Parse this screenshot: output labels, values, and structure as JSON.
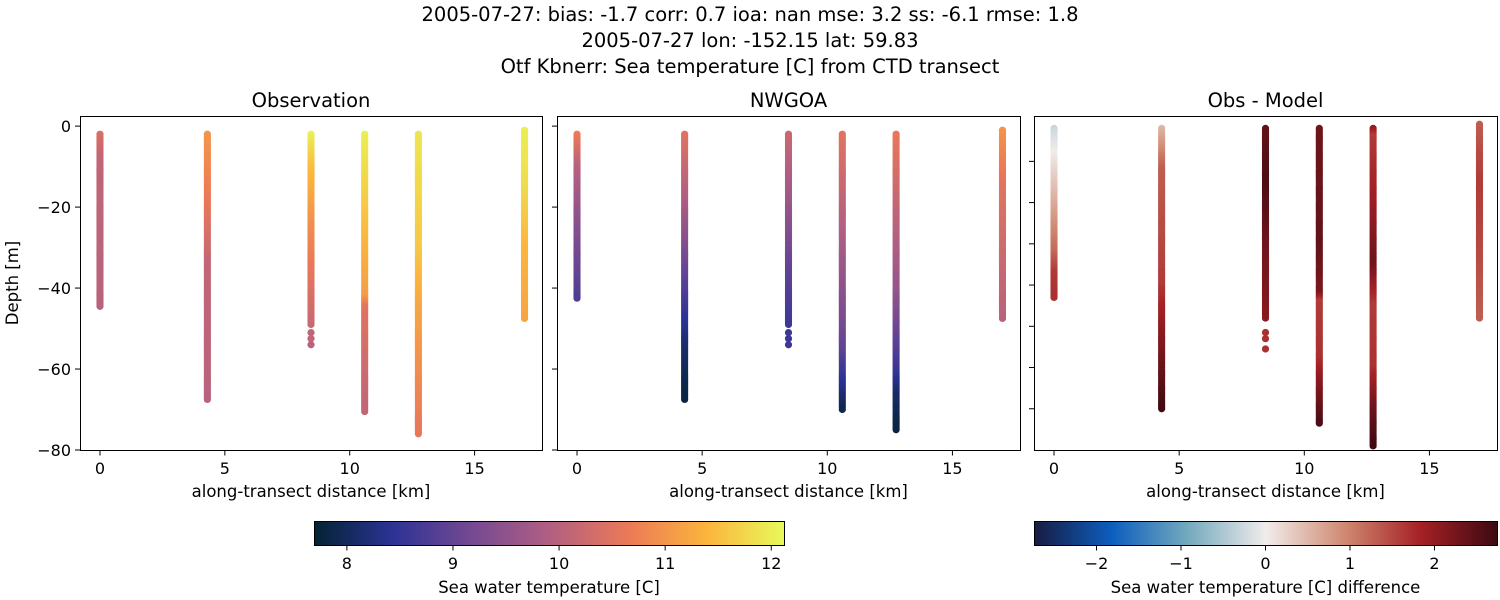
{
  "suptitle": {
    "line1": "2005-07-27: bias: -1.7  corr: 0.7  ioa: nan  mse: 3.2  ss: -6.1  rmse: 1.8",
    "line2": "2005-07-27 lon: -152.15 lat: 59.83",
    "line3": "Otf Kbnerr: Sea temperature [C] from CTD transect"
  },
  "chart_data": [
    {
      "type": "scatter",
      "title": "Observation",
      "xlabel": "along-transect distance [km]",
      "ylabel": "Depth [m]",
      "xlim": [
        -0.8,
        17.7
      ],
      "ylim": [
        -80,
        2.5
      ],
      "xticks": [
        0,
        5,
        10,
        15
      ],
      "yticks": [
        0,
        -20,
        -40,
        -60,
        -80
      ],
      "ytick_labels_shown": true,
      "colormap": "thermal",
      "clim": [
        7.69,
        12.12
      ],
      "profiles": [
        {
          "x": 0,
          "top": -2,
          "bottom": -44.5,
          "values": [
            [
              -2,
              10.4
            ],
            [
              -8,
              10.1
            ],
            [
              -44.5,
              10.0
            ]
          ]
        },
        {
          "x": 4.3,
          "top": -2,
          "bottom": -67.5,
          "values": [
            [
              -2,
              11.0
            ],
            [
              -20,
              10.6
            ],
            [
              -35,
              10.1
            ],
            [
              -67.5,
              10.0
            ]
          ]
        },
        {
          "x": 8.45,
          "top": -2,
          "bottom": -49,
          "values": [
            [
              -2,
              12.0
            ],
            [
              -10,
              11.5
            ],
            [
              -25,
              10.9
            ],
            [
              -49,
              10.2
            ]
          ],
          "extra": [
            [
              -51,
              10.1
            ],
            [
              -52.5,
              10.1
            ],
            [
              -54,
              10.0
            ]
          ]
        },
        {
          "x": 10.6,
          "top": -2,
          "bottom": -70.5,
          "values": [
            [
              -2,
              12.0
            ],
            [
              -20,
              11.6
            ],
            [
              -42,
              11.1
            ],
            [
              -45,
              10.5
            ],
            [
              -70.5,
              10.1
            ]
          ]
        },
        {
          "x": 12.75,
          "top": -2,
          "bottom": -76,
          "values": [
            [
              -2,
              11.9
            ],
            [
              -30,
              11.6
            ],
            [
              -45,
              11.2
            ],
            [
              -76,
              10.6
            ]
          ]
        },
        {
          "x": 17,
          "top": -1,
          "bottom": -47.5,
          "values": [
            [
              -1,
              12.0
            ],
            [
              -15,
              11.8
            ],
            [
              -30,
              11.4
            ],
            [
              -47.5,
              11.2
            ]
          ]
        }
      ]
    },
    {
      "type": "scatter",
      "title": "NWGOA",
      "xlabel": "along-transect distance [km]",
      "xlim": [
        -0.8,
        17.7
      ],
      "ylim": [
        -80,
        2.5
      ],
      "xticks": [
        0,
        5,
        10,
        15
      ],
      "yticks": [
        0,
        -20,
        -40,
        -60,
        -80
      ],
      "ytick_labels_shown": false,
      "colormap": "thermal",
      "clim": [
        7.69,
        12.12
      ],
      "profiles": [
        {
          "x": 0,
          "top": -2,
          "bottom": -42.5,
          "values": [
            [
              -2,
              10.7
            ],
            [
              -10,
              10.0
            ],
            [
              -25,
              9.4
            ],
            [
              -42.5,
              8.8
            ]
          ]
        },
        {
          "x": 4.3,
          "top": -2,
          "bottom": -67.5,
          "values": [
            [
              -2,
              10.5
            ],
            [
              -20,
              9.8
            ],
            [
              -45,
              8.6
            ],
            [
              -55,
              8.1
            ],
            [
              -67.5,
              7.8
            ]
          ]
        },
        {
          "x": 8.45,
          "top": -2,
          "bottom": -49,
          "values": [
            [
              -2,
              10.2
            ],
            [
              -20,
              9.6
            ],
            [
              -35,
              9.0
            ],
            [
              -49,
              8.6
            ]
          ],
          "extra": [
            [
              -51,
              8.6
            ],
            [
              -52.5,
              8.6
            ],
            [
              -54,
              8.6
            ]
          ]
        },
        {
          "x": 10.6,
          "top": -2,
          "bottom": -70,
          "values": [
            [
              -2,
              10.5
            ],
            [
              -30,
              9.8
            ],
            [
              -55,
              9.0
            ],
            [
              -62,
              8.5
            ],
            [
              -70,
              7.9
            ]
          ]
        },
        {
          "x": 12.75,
          "top": -2,
          "bottom": -75,
          "values": [
            [
              -2,
              10.6
            ],
            [
              -40,
              9.6
            ],
            [
              -60,
              8.6
            ],
            [
              -66,
              8.1
            ],
            [
              -75,
              7.8
            ]
          ]
        },
        {
          "x": 17,
          "top": -1,
          "bottom": -47.5,
          "values": [
            [
              -1,
              11.0
            ],
            [
              -15,
              10.5
            ],
            [
              -47.5,
              10.0
            ]
          ]
        }
      ]
    },
    {
      "type": "scatter",
      "title": "Obs - Model",
      "xlabel": "along-transect distance [km]",
      "xlim": [
        -0.8,
        17.7
      ],
      "ylim": [
        -80,
        1
      ],
      "xticks": [
        0,
        5,
        10,
        15
      ],
      "yticks": [
        -10,
        -20,
        -30,
        -40,
        -50,
        -60,
        -70
      ],
      "ytick_labels_shown": false,
      "colormap": "balance",
      "clim": [
        -2.74,
        2.74
      ],
      "profiles": [
        {
          "x": 0,
          "top": -2,
          "bottom": -43,
          "values": [
            [
              -2,
              -0.3
            ],
            [
              -8,
              0.0
            ],
            [
              -20,
              0.6
            ],
            [
              -32,
              1.2
            ],
            [
              -37,
              1.6
            ],
            [
              -43,
              1.7
            ]
          ]
        },
        {
          "x": 4.3,
          "top": -2,
          "bottom": -70,
          "values": [
            [
              -2,
              0.5
            ],
            [
              -12,
              1.3
            ],
            [
              -40,
              1.6
            ],
            [
              -50,
              2.0
            ],
            [
              -62,
              2.4
            ],
            [
              -70,
              2.7
            ]
          ]
        },
        {
          "x": 8.45,
          "top": -2,
          "bottom": -48,
          "values": [
            [
              -2,
              2.4
            ],
            [
              -15,
              2.6
            ],
            [
              -30,
              2.3
            ],
            [
              -48,
              2.1
            ]
          ],
          "extra": [
            [
              -51.5,
              1.7
            ],
            [
              -53,
              1.7
            ],
            [
              -55.5,
              1.7
            ]
          ]
        },
        {
          "x": 10.6,
          "top": -2,
          "bottom": -73.5,
          "values": [
            [
              -2,
              2.3
            ],
            [
              -30,
              2.4
            ],
            [
              -42,
              2.2
            ],
            [
              -44,
              1.6
            ],
            [
              -58,
              1.7
            ],
            [
              -64,
              2.1
            ],
            [
              -73.5,
              2.6
            ]
          ]
        },
        {
          "x": 12.75,
          "top": -2,
          "bottom": -79,
          "values": [
            [
              -2,
              2.0
            ],
            [
              -4,
              1.6
            ],
            [
              -20,
              1.9
            ],
            [
              -35,
              2.3
            ],
            [
              -45,
              1.6
            ],
            [
              -60,
              1.7
            ],
            [
              -70,
              2.3
            ],
            [
              -79,
              2.7
            ]
          ]
        },
        {
          "x": 17,
          "top": -1,
          "bottom": -48,
          "values": [
            [
              -1,
              1.3
            ],
            [
              -15,
              1.6
            ],
            [
              -30,
              1.5
            ],
            [
              -48,
              1.3
            ]
          ]
        }
      ]
    }
  ],
  "colorbars": [
    {
      "label": "Sea water temperature [C]",
      "range": [
        7.69,
        12.12
      ],
      "ticks": [
        8,
        9,
        10,
        11,
        12
      ],
      "colormap": "thermal",
      "colors": [
        "#042333",
        "#2c3395",
        "#744992",
        "#b15f82",
        "#eb7958",
        "#fbb43d",
        "#e8fa5b"
      ]
    },
    {
      "label": "Sea water temperature [C] difference",
      "range": [
        -2.74,
        2.74
      ],
      "ticks": [
        "−2",
        "−1",
        "0",
        "1",
        "2"
      ],
      "tick_values": [
        -2,
        -1,
        0,
        1,
        2
      ],
      "colormap": "balance",
      "colors": [
        "#181c43",
        "#0c5ebe",
        "#75aabe",
        "#f1eceb",
        "#d08b73",
        "#a52125",
        "#3c0912"
      ]
    }
  ]
}
